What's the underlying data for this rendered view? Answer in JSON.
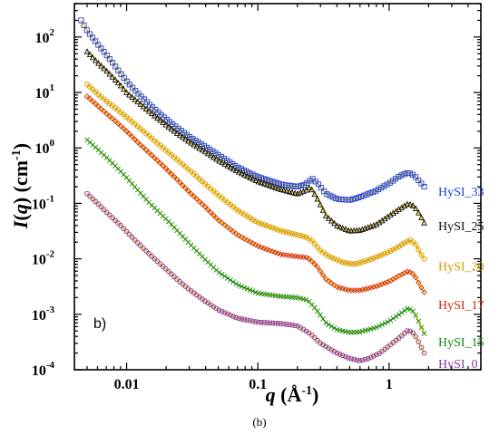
{
  "chart_data": {
    "type": "scatter",
    "title": "",
    "xlabel": "q (Å⁻¹)",
    "xlabel_parts": {
      "var": "q",
      "unit_open": " (Å",
      "unit_exp": "-1",
      "unit_close": ")"
    },
    "ylabel": "I(q) (cm⁻¹)",
    "ylabel_parts": {
      "var": "I",
      "open": "(",
      "arg": "q",
      "close": ")",
      "unit_open": " (cm",
      "unit_exp": "-1",
      "unit_close": ")"
    },
    "xscale": "log",
    "yscale": "log",
    "xlim": [
      0.004,
      5
    ],
    "ylim": [
      0.0001,
      400
    ],
    "x_ticks": [
      {
        "value": 0.01,
        "label": "0.01"
      },
      {
        "value": 0.1,
        "label": "0.1"
      },
      {
        "value": 1,
        "label": "1"
      }
    ],
    "y_ticks": [
      {
        "value": 0.0001,
        "base": "10",
        "exp": "-4"
      },
      {
        "value": 0.001,
        "base": "10",
        "exp": "-3"
      },
      {
        "value": 0.01,
        "base": "10",
        "exp": "-2"
      },
      {
        "value": 0.1,
        "base": "10",
        "exp": "-1"
      },
      {
        "value": 1,
        "base": "10",
        "exp": "0"
      },
      {
        "value": 10,
        "base": "10",
        "exp": "1"
      },
      {
        "value": 100,
        "base": "10",
        "exp": "2"
      }
    ],
    "grid": false,
    "legend": "labels at right end of each series",
    "panel_label": "b)",
    "caption": "(b)",
    "fit_color": "#e8c400",
    "series": [
      {
        "name": "HySI_33",
        "color": "#1f3fd6",
        "marker": "square",
        "label_y": 0.165,
        "points": [
          [
            0.0045,
            200
          ],
          [
            0.005,
            130
          ],
          [
            0.006,
            75
          ],
          [
            0.007,
            48
          ],
          [
            0.008,
            32
          ],
          [
            0.009,
            22
          ],
          [
            0.01,
            16
          ],
          [
            0.012,
            10
          ],
          [
            0.015,
            6
          ],
          [
            0.02,
            3.3
          ],
          [
            0.025,
            2.2
          ],
          [
            0.03,
            1.6
          ],
          [
            0.04,
            1.05
          ],
          [
            0.05,
            0.75
          ],
          [
            0.07,
            0.45
          ],
          [
            0.1,
            0.3
          ],
          [
            0.15,
            0.22
          ],
          [
            0.2,
            0.2
          ],
          [
            0.23,
            0.22
          ],
          [
            0.26,
            0.28
          ],
          [
            0.29,
            0.22
          ],
          [
            0.33,
            0.15
          ],
          [
            0.4,
            0.12
          ],
          [
            0.5,
            0.115
          ],
          [
            0.6,
            0.13
          ],
          [
            0.8,
            0.17
          ],
          [
            1.0,
            0.23
          ],
          [
            1.2,
            0.31
          ],
          [
            1.4,
            0.36
          ],
          [
            1.55,
            0.32
          ],
          [
            1.7,
            0.25
          ],
          [
            1.85,
            0.2
          ]
        ]
      },
      {
        "name": "HySI_25",
        "color": "#111111",
        "marker": "triangle",
        "label_y": 0.04,
        "points": [
          [
            0.005,
            55
          ],
          [
            0.006,
            35
          ],
          [
            0.007,
            25
          ],
          [
            0.008,
            18
          ],
          [
            0.009,
            13.5
          ],
          [
            0.01,
            10
          ],
          [
            0.012,
            7
          ],
          [
            0.015,
            4.5
          ],
          [
            0.02,
            2.6
          ],
          [
            0.025,
            1.75
          ],
          [
            0.03,
            1.3
          ],
          [
            0.04,
            0.85
          ],
          [
            0.05,
            0.6
          ],
          [
            0.07,
            0.38
          ],
          [
            0.1,
            0.25
          ],
          [
            0.15,
            0.18
          ],
          [
            0.2,
            0.15
          ],
          [
            0.23,
            0.17
          ],
          [
            0.25,
            0.2
          ],
          [
            0.28,
            0.13
          ],
          [
            0.33,
            0.06
          ],
          [
            0.4,
            0.04
          ],
          [
            0.5,
            0.032
          ],
          [
            0.6,
            0.033
          ],
          [
            0.8,
            0.042
          ],
          [
            1.0,
            0.06
          ],
          [
            1.2,
            0.08
          ],
          [
            1.4,
            0.1
          ],
          [
            1.55,
            0.09
          ],
          [
            1.7,
            0.065
          ],
          [
            1.85,
            0.045
          ]
        ]
      },
      {
        "name": "HySI_20",
        "color": "#d99a00",
        "marker": "circle",
        "label_y": 0.0075,
        "points": [
          [
            0.005,
            14
          ],
          [
            0.006,
            9.5
          ],
          [
            0.007,
            7
          ],
          [
            0.008,
            5.5
          ],
          [
            0.009,
            4.4
          ],
          [
            0.01,
            3.6
          ],
          [
            0.012,
            2.5
          ],
          [
            0.015,
            1.6
          ],
          [
            0.02,
            0.9
          ],
          [
            0.025,
            0.58
          ],
          [
            0.03,
            0.4
          ],
          [
            0.04,
            0.22
          ],
          [
            0.05,
            0.14
          ],
          [
            0.07,
            0.075
          ],
          [
            0.1,
            0.045
          ],
          [
            0.15,
            0.032
          ],
          [
            0.2,
            0.027
          ],
          [
            0.23,
            0.025
          ],
          [
            0.26,
            0.021
          ],
          [
            0.3,
            0.014
          ],
          [
            0.35,
            0.011
          ],
          [
            0.45,
            0.0085
          ],
          [
            0.55,
            0.008
          ],
          [
            0.7,
            0.0095
          ],
          [
            0.9,
            0.012
          ],
          [
            1.1,
            0.015
          ],
          [
            1.3,
            0.019
          ],
          [
            1.45,
            0.022
          ],
          [
            1.6,
            0.018
          ],
          [
            1.75,
            0.012
          ],
          [
            1.85,
            0.01
          ]
        ]
      },
      {
        "name": "HySI_17",
        "color": "#d42a10",
        "marker": "diamond",
        "label_y": 0.0015,
        "points": [
          [
            0.005,
            8.5
          ],
          [
            0.006,
            5.8
          ],
          [
            0.007,
            4.2
          ],
          [
            0.008,
            3.2
          ],
          [
            0.009,
            2.5
          ],
          [
            0.01,
            2.0
          ],
          [
            0.012,
            1.3
          ],
          [
            0.015,
            0.8
          ],
          [
            0.02,
            0.42
          ],
          [
            0.025,
            0.25
          ],
          [
            0.03,
            0.16
          ],
          [
            0.04,
            0.085
          ],
          [
            0.05,
            0.05
          ],
          [
            0.07,
            0.027
          ],
          [
            0.1,
            0.017
          ],
          [
            0.15,
            0.012
          ],
          [
            0.2,
            0.011
          ],
          [
            0.24,
            0.0105
          ],
          [
            0.28,
            0.0075
          ],
          [
            0.33,
            0.0043
          ],
          [
            0.4,
            0.0031
          ],
          [
            0.5,
            0.0027
          ],
          [
            0.6,
            0.0027
          ],
          [
            0.8,
            0.0032
          ],
          [
            1.0,
            0.0039
          ],
          [
            1.2,
            0.005
          ],
          [
            1.4,
            0.006
          ],
          [
            1.55,
            0.0052
          ],
          [
            1.7,
            0.0035
          ],
          [
            1.85,
            0.0025
          ]
        ]
      },
      {
        "name": "HySI_15",
        "color": "#148a14",
        "marker": "cross",
        "label_y": 0.00032,
        "points": [
          [
            0.005,
            1.4
          ],
          [
            0.006,
            0.95
          ],
          [
            0.007,
            0.68
          ],
          [
            0.008,
            0.5
          ],
          [
            0.009,
            0.38
          ],
          [
            0.01,
            0.29
          ],
          [
            0.012,
            0.18
          ],
          [
            0.015,
            0.1
          ],
          [
            0.02,
            0.052
          ],
          [
            0.025,
            0.03
          ],
          [
            0.03,
            0.019
          ],
          [
            0.04,
            0.0095
          ],
          [
            0.05,
            0.0058
          ],
          [
            0.07,
            0.0034
          ],
          [
            0.1,
            0.0024
          ],
          [
            0.15,
            0.0021
          ],
          [
            0.2,
            0.002
          ],
          [
            0.24,
            0.0018
          ],
          [
            0.28,
            0.0012
          ],
          [
            0.33,
            0.0007
          ],
          [
            0.4,
            0.00053
          ],
          [
            0.5,
            0.00047
          ],
          [
            0.6,
            0.00048
          ],
          [
            0.8,
            0.00058
          ],
          [
            1.0,
            0.00075
          ],
          [
            1.2,
            0.001
          ],
          [
            1.4,
            0.0013
          ],
          [
            1.55,
            0.0011
          ],
          [
            1.7,
            0.0007
          ],
          [
            1.85,
            0.00045
          ]
        ]
      },
      {
        "name": "HySI_0",
        "color": "#8a3aa8",
        "marker": "hexagon",
        "label_y": 0.00013,
        "points": [
          [
            0.005,
            0.15
          ],
          [
            0.006,
            0.1
          ],
          [
            0.007,
            0.07
          ],
          [
            0.008,
            0.052
          ],
          [
            0.009,
            0.04
          ],
          [
            0.01,
            0.031
          ],
          [
            0.012,
            0.02
          ],
          [
            0.015,
            0.012
          ],
          [
            0.02,
            0.0065
          ],
          [
            0.025,
            0.004
          ],
          [
            0.03,
            0.0028
          ],
          [
            0.04,
            0.0017
          ],
          [
            0.05,
            0.0012
          ],
          [
            0.07,
            0.00085
          ],
          [
            0.1,
            0.00072
          ],
          [
            0.15,
            0.00068
          ],
          [
            0.2,
            0.00062
          ],
          [
            0.25,
            0.00045
          ],
          [
            0.3,
            0.0003
          ],
          [
            0.4,
            0.0002
          ],
          [
            0.5,
            0.00016
          ],
          [
            0.6,
            0.000145
          ],
          [
            0.7,
            0.00016
          ],
          [
            0.85,
            0.0002
          ],
          [
            1.0,
            0.00027
          ],
          [
            1.2,
            0.00038
          ],
          [
            1.4,
            0.00052
          ],
          [
            1.55,
            0.00045
          ],
          [
            1.7,
            0.0003
          ],
          [
            1.85,
            0.0002
          ]
        ]
      }
    ]
  }
}
